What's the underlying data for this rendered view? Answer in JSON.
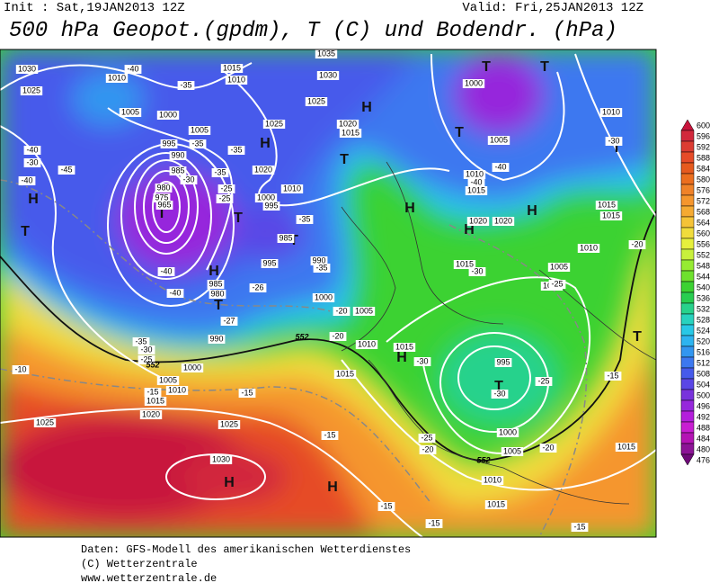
{
  "header": {
    "init": "Init : Sat,19JAN2013 12Z",
    "valid": "Valid: Fri,25JAN2013 12Z",
    "title": "500 hPa Geopot.(gpdm), T (C) und Bodendr. (hPa)"
  },
  "footer": [
    "Daten: GFS-Modell des amerikanischen Wetterdienstes",
    "(C) Wetterzentrale",
    "www.wetterzentrale.de"
  ],
  "colorbar": {
    "levels": [
      600,
      596,
      592,
      588,
      584,
      580,
      576,
      572,
      568,
      564,
      560,
      556,
      552,
      548,
      544,
      540,
      536,
      532,
      528,
      524,
      520,
      516,
      512,
      508,
      504,
      500,
      496,
      492,
      488,
      484,
      480,
      476
    ],
    "colors": [
      "#c8143c",
      "#d2283c",
      "#dc3c32",
      "#e64b28",
      "#e65a1e",
      "#ec6e1e",
      "#f08228",
      "#f5962d",
      "#f5aa32",
      "#f5c337",
      "#f0dc3c",
      "#e6f03c",
      "#c8f03c",
      "#96eb32",
      "#6ee12d",
      "#3cd232",
      "#28cd50",
      "#28d28c",
      "#28d2be",
      "#28c8e6",
      "#2db4f0",
      "#3296f0",
      "#3c78f0",
      "#465aeb",
      "#5a46e6",
      "#7832dc",
      "#9628dc",
      "#b41edc",
      "#c81ed2",
      "#b414b4",
      "#8c1496",
      "#6e0a78"
    ]
  },
  "map": {
    "centers": [
      "T",
      "T",
      "H",
      "H",
      "T",
      "T",
      "T",
      "H",
      "T",
      "T",
      "T",
      "H",
      "H",
      "H",
      "T",
      "H",
      "T",
      "T",
      "H",
      "T",
      "H",
      "H"
    ],
    "isobar_labels": [
      1030,
      1025,
      1010,
      1005,
      1000,
      1005,
      1015,
      1010,
      1035,
      1030,
      1025,
      1025,
      1020,
      1015,
      1020,
      1010,
      1000,
      995,
      995,
      990,
      985,
      980,
      975,
      965,
      1000,
      1005,
      1010,
      1015,
      1020,
      1020,
      1010,
      1015,
      1015,
      1010,
      1005,
      1000,
      1015,
      995,
      990,
      985,
      985,
      980,
      1000,
      1005,
      990,
      1010,
      1015,
      995,
      1000,
      1005,
      1010,
      1015,
      1015,
      1015,
      1000,
      1005,
      1010,
      1015,
      1020,
      1025,
      1025,
      1030
    ],
    "temperature_labels": [
      -40,
      -35,
      -40,
      -30,
      -40,
      -45,
      -35,
      -35,
      -35,
      -30,
      -25,
      -25,
      -35,
      -40,
      -40,
      -35,
      -26,
      -27,
      -20,
      -20,
      -35,
      -30,
      -25,
      -10,
      -15,
      -15,
      -15,
      -30,
      -25,
      -30,
      -25,
      -30,
      -40,
      -40,
      -30,
      -20,
      -15,
      -25,
      -20,
      -20,
      -15,
      -15,
      -15
    ],
    "contour_labels": [
      552,
      552,
      552
    ]
  }
}
